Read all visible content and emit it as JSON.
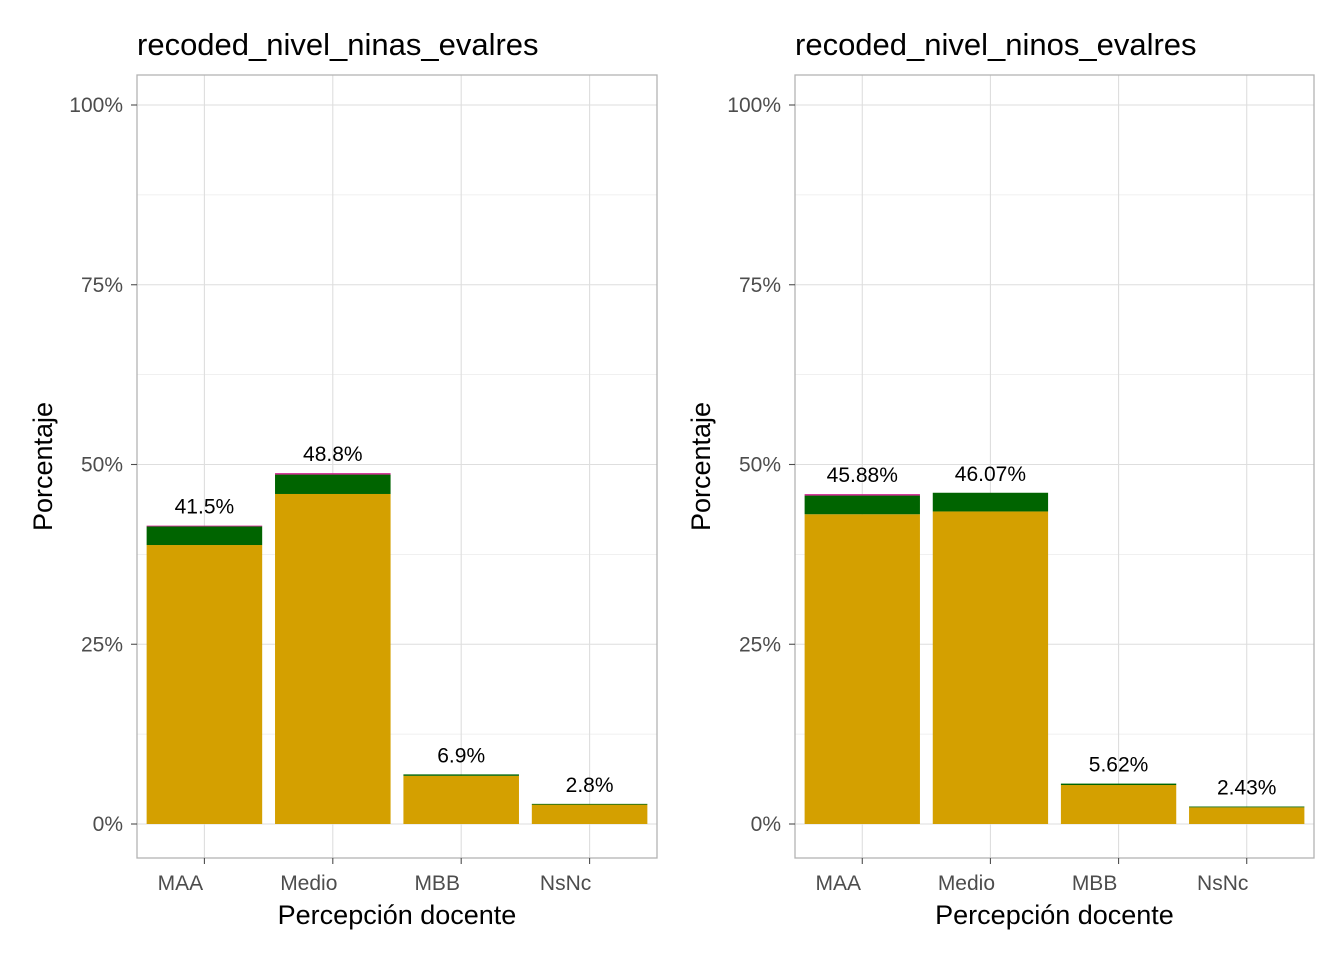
{
  "chart_data": [
    {
      "type": "bar",
      "stacked": true,
      "title": "recoded_nivel_ninas_evalres",
      "xlabel": "Percepción docente",
      "ylabel": "Porcentaje",
      "categories": [
        "MAA",
        "Medio",
        "MBB",
        "NsNc"
      ],
      "ylim": [
        0,
        100
      ],
      "yticks": [
        "0%",
        "25%",
        "50%",
        "75%",
        "100%"
      ],
      "grid": true,
      "colors": [
        "#d1208e",
        "#006400",
        "#d4a000"
      ],
      "totals": [
        41.5,
        48.8,
        6.9,
        2.8
      ],
      "bar_labels": [
        "41.5%",
        "48.8%",
        "6.9%",
        "2.8%"
      ],
      "series": [
        {
          "values": [
            0.1,
            0.2,
            0.0,
            0.0
          ]
        },
        {
          "values": [
            2.6,
            2.7,
            0.2,
            0.1
          ]
        },
        {
          "values": [
            38.8,
            45.9,
            6.7,
            2.7
          ]
        }
      ]
    },
    {
      "type": "bar",
      "stacked": true,
      "title": "recoded_nivel_ninos_evalres",
      "xlabel": "Percepción docente",
      "ylabel": "Porcentaje",
      "categories": [
        "MAA",
        "Medio",
        "MBB",
        "NsNc"
      ],
      "ylim": [
        0,
        100
      ],
      "yticks": [
        "0%",
        "25%",
        "50%",
        "75%",
        "100%"
      ],
      "grid": true,
      "colors": [
        "#d1208e",
        "#006400",
        "#d4a000"
      ],
      "totals": [
        45.88,
        46.07,
        5.62,
        2.43
      ],
      "bar_labels": [
        "45.88%",
        "46.07%",
        "5.62%",
        "2.43%"
      ],
      "series": [
        {
          "values": [
            0.2,
            0.0,
            0.0,
            0.0
          ]
        },
        {
          "values": [
            2.6,
            2.6,
            0.2,
            0.1
          ]
        },
        {
          "values": [
            43.08,
            43.47,
            5.42,
            2.33
          ]
        }
      ]
    }
  ]
}
